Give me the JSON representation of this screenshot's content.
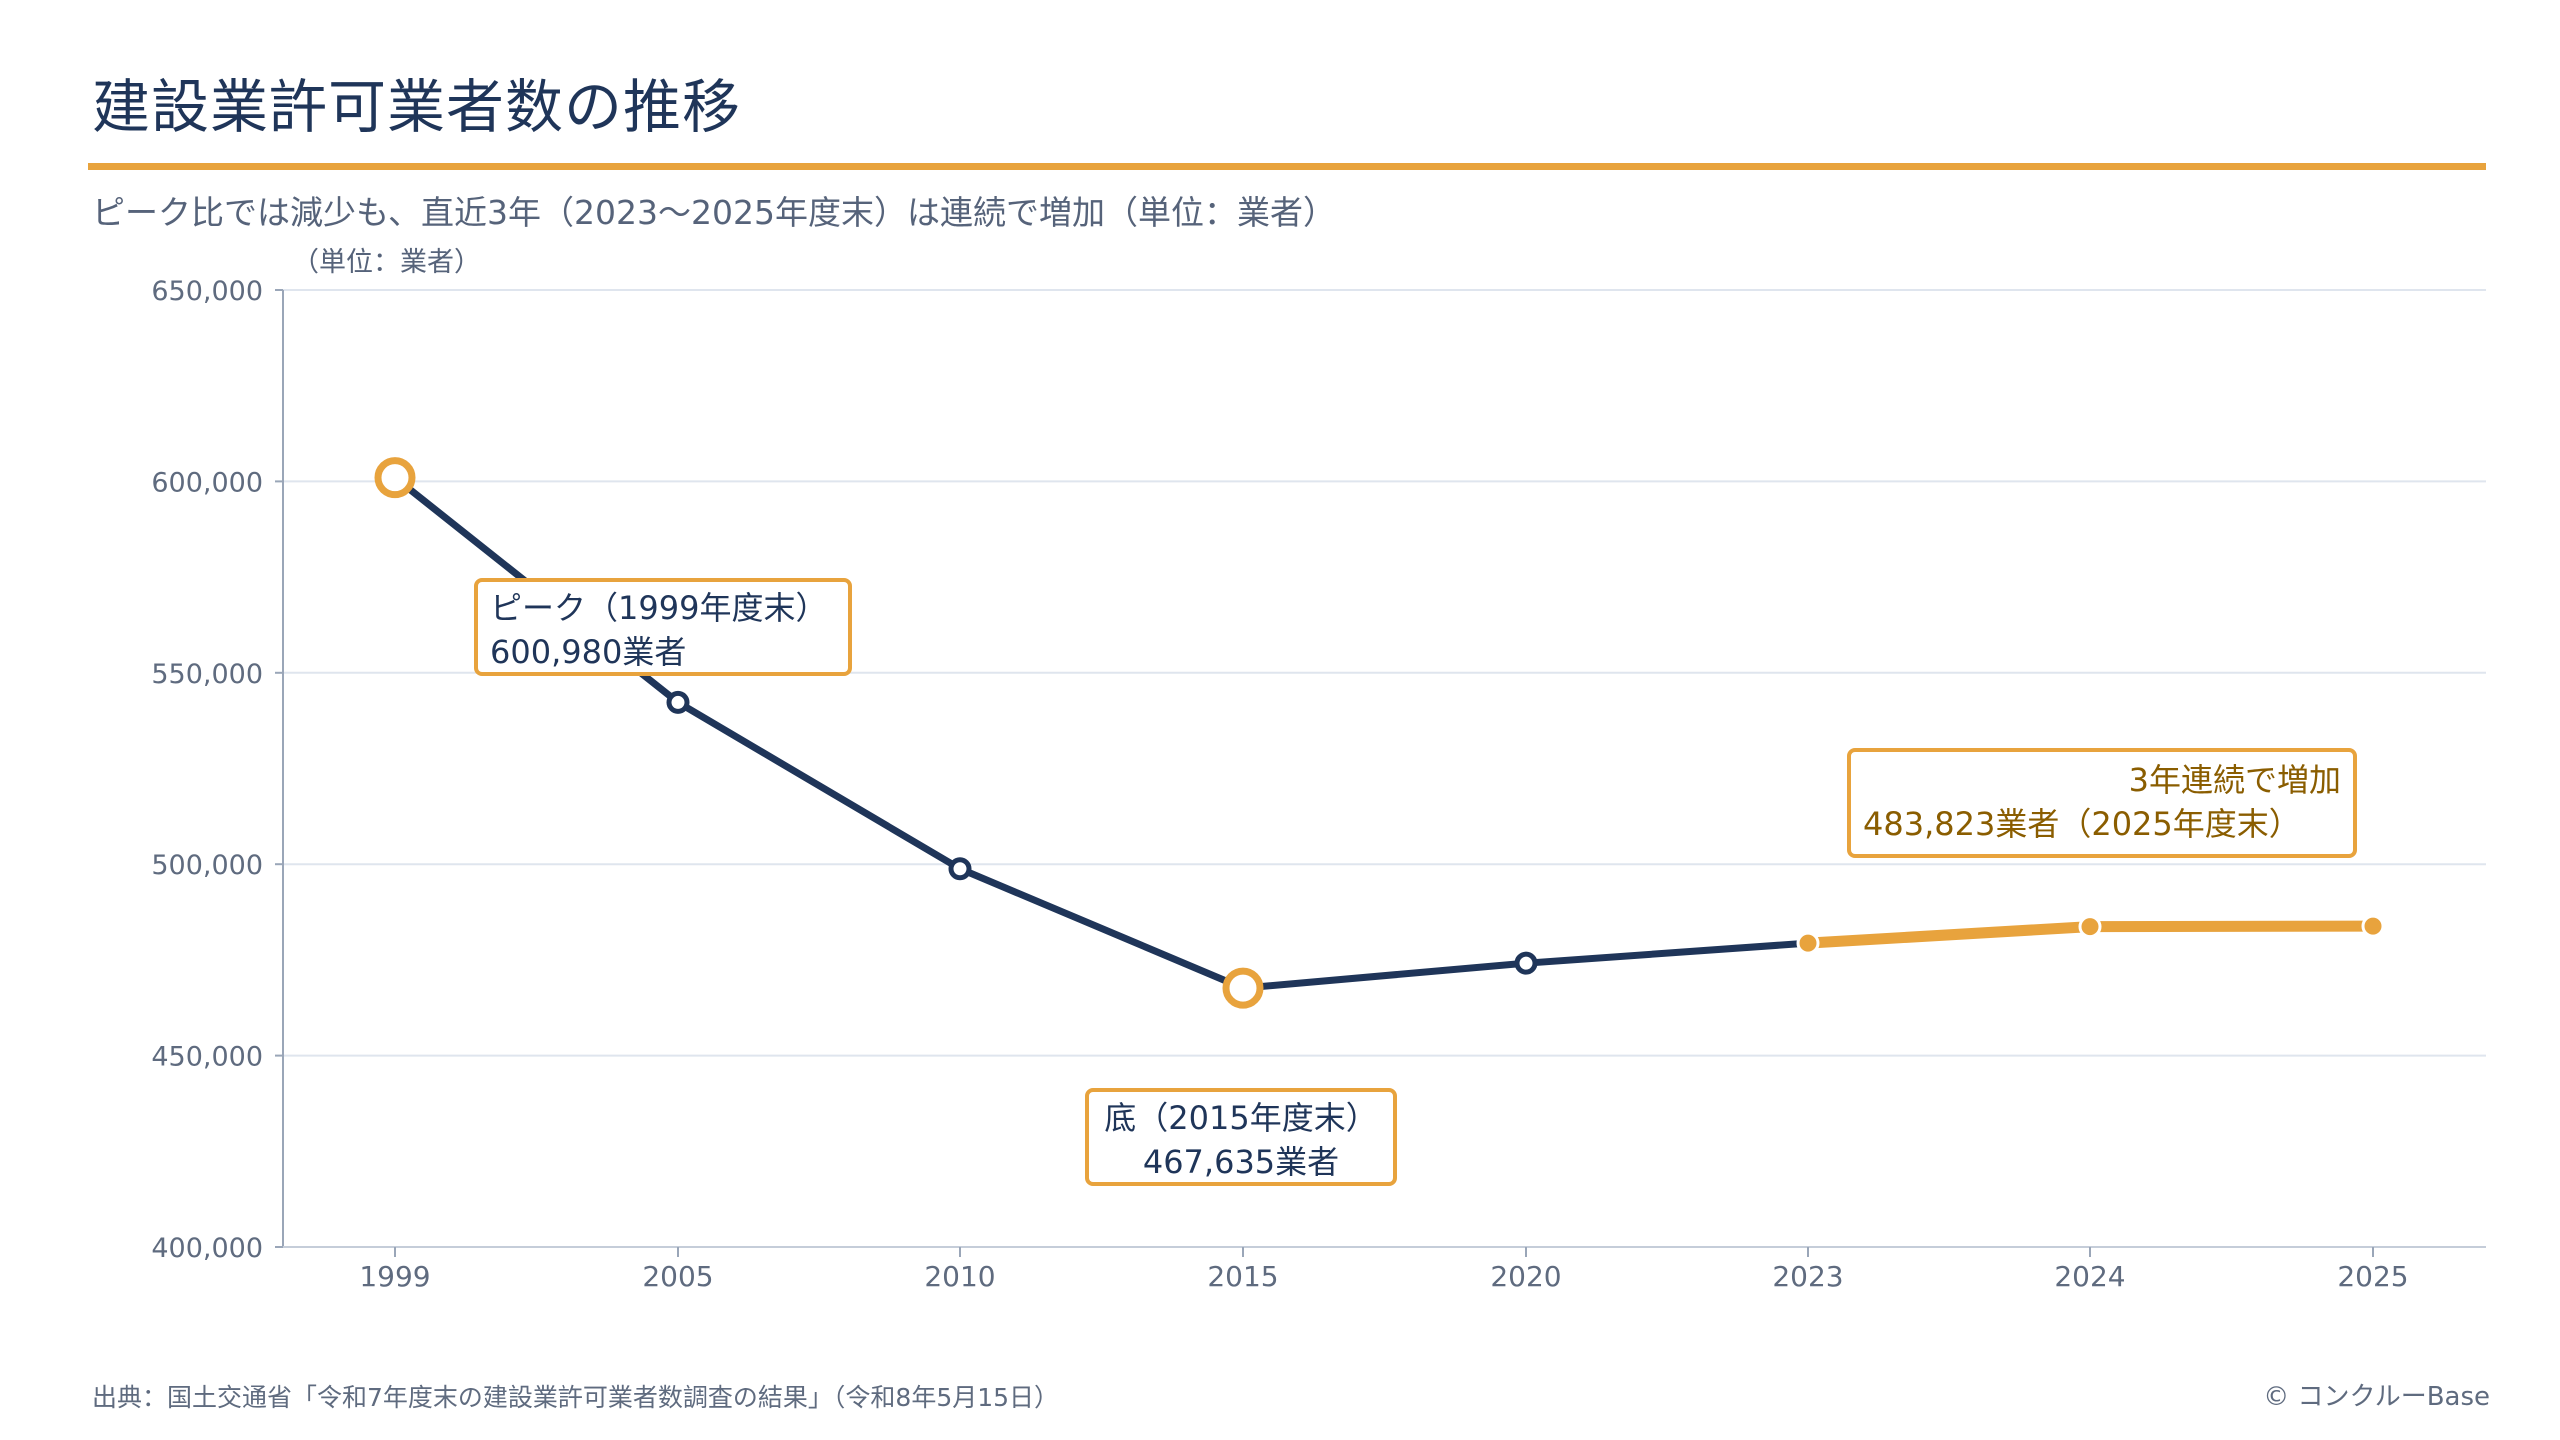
{
  "header": {
    "title": "建設業許可業者数の推移",
    "subtitle": "ピーク比では減少も、直近3年（2023〜2025年度末）は連続で増加（単位：業者）",
    "unit_label": "（単位：業者）"
  },
  "chart_data": {
    "type": "line",
    "title": "建設業許可業者数の推移",
    "subtitle": "ピーク比では減少も、直近3年（2023〜2025年度末）は連続で増加（単位：業者）",
    "ylabel": "（単位：業者）",
    "xlabel": "",
    "categories": [
      "1999",
      "2005",
      "2010",
      "2015",
      "2020",
      "2023",
      "2024",
      "2025"
    ],
    "values": [
      600980,
      542264,
      498807,
      467635,
      474144,
      479383,
      483700,
      483823
    ],
    "ylim": [
      400000,
      650000
    ],
    "yticks": [
      400000,
      450000,
      500000,
      550000,
      600000,
      650000
    ],
    "ytick_labels": [
      "400,000",
      "450,000",
      "500,000",
      "550,000",
      "600,000",
      "650,000"
    ],
    "grid": true,
    "colors": {
      "main": "#1f3559",
      "highlight": "#e8a33d",
      "grid": "#dfe5ee"
    },
    "highlight_from_index": 5,
    "annotations": {
      "peak": {
        "line1": "ピーク（1999年度末）",
        "line2": "600,980業者"
      },
      "bottom": {
        "line1": "底（2015年度末）",
        "line2": "467,635業者"
      },
      "increase": {
        "line1": "3年連続で増加",
        "line2": "483,823業者（2025年度末）"
      }
    }
  },
  "footer": {
    "source": "出典：国土交通省「令和7年度末の建設業許可業者数調査の結果」（令和8年5月15日）",
    "credit": "© コンクルーBase"
  }
}
